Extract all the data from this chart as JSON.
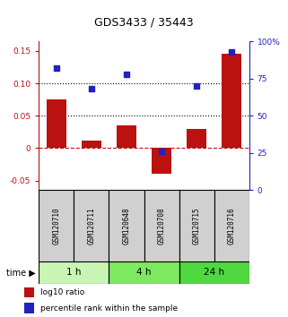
{
  "title": "GDS3433 / 35443",
  "samples": [
    "GSM120710",
    "GSM120711",
    "GSM120648",
    "GSM120708",
    "GSM120715",
    "GSM120716"
  ],
  "log10_ratio": [
    0.075,
    0.012,
    0.035,
    -0.04,
    0.03,
    0.145
  ],
  "percentile_rank": [
    82,
    68,
    78,
    26,
    70,
    93
  ],
  "time_groups": [
    {
      "label": "1 h",
      "indices": [
        0,
        1
      ],
      "color": "#c8f5b4"
    },
    {
      "label": "4 h",
      "indices": [
        2,
        3
      ],
      "color": "#7ee860"
    },
    {
      "label": "24 h",
      "indices": [
        4,
        5
      ],
      "color": "#50d840"
    }
  ],
  "bar_color": "#bb1111",
  "dot_color": "#2222bb",
  "left_ylim": [
    -0.065,
    0.165
  ],
  "left_yticks": [
    -0.05,
    0.0,
    0.05,
    0.1,
    0.15
  ],
  "left_ytick_labels": [
    "-0.05",
    "0",
    "0.05",
    "0.10",
    "0.15"
  ],
  "right_yticks": [
    0,
    25,
    50,
    75,
    100
  ],
  "right_ytick_labels": [
    "0",
    "25",
    "50",
    "75",
    "100%"
  ],
  "hline_y": [
    0.05,
    0.1
  ],
  "sample_box_color": "#d0d0d0",
  "legend_entries": [
    {
      "label": "log10 ratio",
      "color": "#bb1111"
    },
    {
      "label": "percentile rank within the sample",
      "color": "#2222bb"
    }
  ]
}
